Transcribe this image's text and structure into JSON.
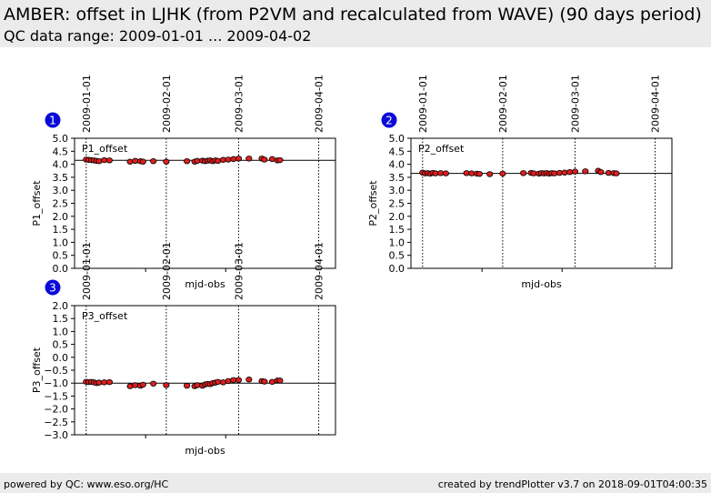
{
  "header": {
    "title": "AMBER: offset in LJHK (from P2VM and recalculated from WAVE) (90 days period)",
    "subtitle": "QC data range: 2009-01-01 ... 2009-04-02"
  },
  "footer": {
    "left": "powered by QC: www.eso.org/HC",
    "right": "created by trendPlotter v3.7 on 2018-09-01T04:00:35"
  },
  "chart_data": [
    {
      "type": "scatter",
      "panel_number": "1",
      "label": "P1_offset",
      "ylabel": "P1_offset",
      "xlabel": "mjd-obs",
      "ylim": [
        0.0,
        5.0
      ],
      "yticks": [
        "0.0",
        "0.5",
        "1.0",
        "1.5",
        "2.0",
        "2.5",
        "3.0",
        "3.5",
        "4.0",
        "4.5",
        "5.0"
      ],
      "date_ticks": [
        "2009-01-01",
        "2009-02-01",
        "2009-03-01",
        "2009-04-01"
      ],
      "ref_value": 4.15,
      "series": [
        {
          "color": "#dd1f1f",
          "x": [
            "2009-01-01",
            "2009-01-02",
            "2009-01-03",
            "2009-01-04",
            "2009-01-05",
            "2009-01-06",
            "2009-01-08",
            "2009-01-10",
            "2009-01-18",
            "2009-01-20",
            "2009-01-22",
            "2009-01-23",
            "2009-01-27",
            "2009-02-01",
            "2009-02-09",
            "2009-02-12",
            "2009-02-13",
            "2009-02-15",
            "2009-02-16",
            "2009-02-17",
            "2009-02-18",
            "2009-02-19",
            "2009-02-20",
            "2009-02-21",
            "2009-02-23",
            "2009-02-25",
            "2009-02-27",
            "2009-03-01",
            "2009-03-05",
            "2009-03-10",
            "2009-03-11",
            "2009-03-14",
            "2009-03-16",
            "2009-03-17"
          ],
          "y": [
            4.18,
            4.17,
            4.16,
            4.15,
            4.13,
            4.12,
            4.16,
            4.15,
            4.1,
            4.13,
            4.12,
            4.1,
            4.12,
            4.1,
            4.12,
            4.1,
            4.13,
            4.14,
            4.12,
            4.14,
            4.15,
            4.12,
            4.15,
            4.13,
            4.17,
            4.18,
            4.2,
            4.22,
            4.22,
            4.22,
            4.18,
            4.2,
            4.15,
            4.16
          ]
        }
      ]
    },
    {
      "type": "scatter",
      "panel_number": "2",
      "label": "P2_offset",
      "ylabel": "P2_offset",
      "xlabel": "mjd-obs",
      "ylim": [
        0.0,
        5.0
      ],
      "yticks": [
        "0.0",
        "0.5",
        "1.0",
        "1.5",
        "2.0",
        "2.5",
        "3.0",
        "3.5",
        "4.0",
        "4.5",
        "5.0"
      ],
      "date_ticks": [
        "2009-01-01",
        "2009-02-01",
        "2009-03-01",
        "2009-04-01"
      ],
      "ref_value": 3.65,
      "series": [
        {
          "color": "#dd1f1f",
          "x": [
            "2009-01-01",
            "2009-01-02",
            "2009-01-03",
            "2009-01-04",
            "2009-01-05",
            "2009-01-06",
            "2009-01-08",
            "2009-01-10",
            "2009-01-18",
            "2009-01-20",
            "2009-01-22",
            "2009-01-23",
            "2009-01-27",
            "2009-02-01",
            "2009-02-09",
            "2009-02-12",
            "2009-02-13",
            "2009-02-15",
            "2009-02-16",
            "2009-02-17",
            "2009-02-18",
            "2009-02-19",
            "2009-02-20",
            "2009-02-21",
            "2009-02-23",
            "2009-02-25",
            "2009-02-27",
            "2009-03-01",
            "2009-03-05",
            "2009-03-10",
            "2009-03-11",
            "2009-03-14",
            "2009-03-16",
            "2009-03-17"
          ],
          "y": [
            3.68,
            3.65,
            3.66,
            3.64,
            3.67,
            3.65,
            3.66,
            3.65,
            3.66,
            3.65,
            3.64,
            3.63,
            3.62,
            3.64,
            3.66,
            3.67,
            3.65,
            3.64,
            3.66,
            3.65,
            3.66,
            3.64,
            3.66,
            3.65,
            3.67,
            3.68,
            3.7,
            3.72,
            3.73,
            3.75,
            3.7,
            3.67,
            3.66,
            3.65
          ]
        }
      ]
    },
    {
      "type": "scatter",
      "panel_number": "3",
      "label": "P3_offset",
      "ylabel": "P3_offset",
      "xlabel": "mjd-obs",
      "ylim": [
        -3.0,
        2.0
      ],
      "yticks": [
        "−3.0",
        "−2.5",
        "−2.0",
        "−1.5",
        "−1.0",
        "−0.5",
        "0.0",
        "0.5",
        "1.0",
        "1.5",
        "2.0"
      ],
      "date_ticks": [
        "2009-01-01",
        "2009-02-01",
        "2009-03-01",
        "2009-04-01"
      ],
      "ref_value": -1.0,
      "series": [
        {
          "color": "#dd1f1f",
          "x": [
            "2009-01-01",
            "2009-01-02",
            "2009-01-03",
            "2009-01-04",
            "2009-01-05",
            "2009-01-06",
            "2009-01-08",
            "2009-01-10",
            "2009-01-18",
            "2009-01-20",
            "2009-01-22",
            "2009-01-23",
            "2009-01-27",
            "2009-02-01",
            "2009-02-09",
            "2009-02-12",
            "2009-02-13",
            "2009-02-15",
            "2009-02-16",
            "2009-02-17",
            "2009-02-18",
            "2009-02-19",
            "2009-02-20",
            "2009-02-21",
            "2009-02-23",
            "2009-02-25",
            "2009-02-27",
            "2009-03-01",
            "2009-03-05",
            "2009-03-10",
            "2009-03-11",
            "2009-03-14",
            "2009-03-16",
            "2009-03-17"
          ],
          "y": [
            -0.95,
            -0.96,
            -0.95,
            -0.97,
            -1.0,
            -0.98,
            -0.97,
            -0.96,
            -1.12,
            -1.08,
            -1.1,
            -1.06,
            -1.02,
            -1.08,
            -1.1,
            -1.12,
            -1.08,
            -1.1,
            -1.05,
            -1.03,
            -1.04,
            -1.0,
            -0.98,
            -0.95,
            -0.97,
            -0.92,
            -0.88,
            -0.88,
            -0.86,
            -0.92,
            -0.94,
            -0.95,
            -0.9,
            -0.9
          ]
        }
      ]
    }
  ]
}
